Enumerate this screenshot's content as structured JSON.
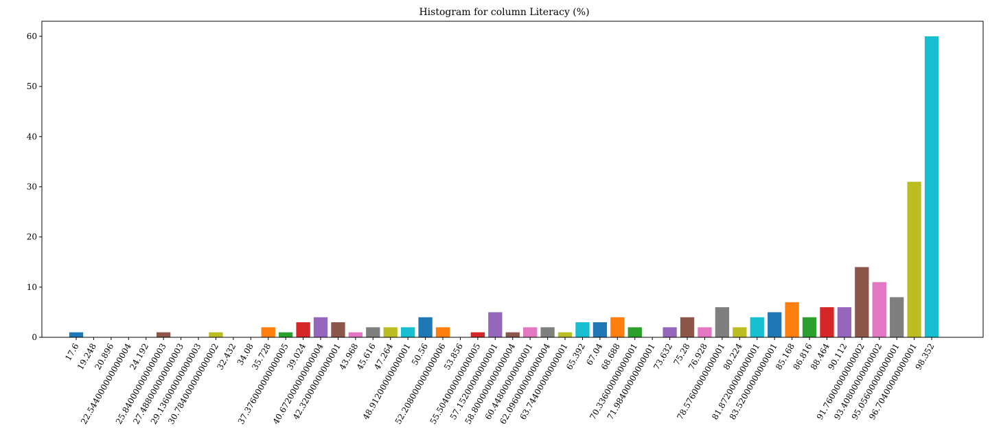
{
  "chart_data": {
    "type": "bar",
    "title": "Histogram for column Literacy (%)",
    "xlabel": "",
    "ylabel": "",
    "ylim": [
      0,
      63
    ],
    "yticks": [
      0,
      10,
      20,
      30,
      40,
      50,
      60
    ],
    "grid": false,
    "legend": "none",
    "palette": [
      "#1f77b4",
      "#ff7f0e",
      "#2ca02c",
      "#d62728",
      "#9467bd",
      "#8c564b",
      "#e377c2",
      "#7f7f7f",
      "#bcbd22",
      "#17becf"
    ],
    "bins": [
      17.6,
      19.248,
      20.896,
      22.544,
      24.192,
      25.84,
      27.488,
      29.136,
      30.784,
      32.432,
      34.08,
      35.728,
      37.376,
      39.024,
      40.672,
      42.32,
      43.968,
      45.616,
      47.264,
      48.912,
      50.56,
      52.208,
      53.856,
      55.504,
      57.152,
      58.8,
      60.448,
      62.096,
      63.744,
      65.392,
      67.04,
      68.688,
      70.336,
      71.984,
      73.632,
      75.28,
      76.928,
      78.576,
      80.224,
      81.872,
      83.52,
      85.168,
      86.816,
      88.464,
      90.112,
      91.76,
      93.408,
      95.056,
      96.704,
      98.352
    ],
    "values": [
      1,
      0,
      0,
      0,
      0,
      1,
      0,
      0,
      1,
      0,
      0,
      2,
      1,
      3,
      4,
      3,
      1,
      2,
      2,
      2,
      4,
      2,
      0,
      1,
      5,
      1,
      2,
      2,
      1,
      3,
      3,
      4,
      2,
      0,
      2,
      4,
      2,
      6,
      2,
      4,
      5,
      7,
      4,
      6,
      6,
      14,
      11,
      8,
      31,
      60
    ],
    "tick_labels": [
      "17.6",
      "19.248",
      "20.896",
      "22.544000000000004",
      "24.192",
      "25.840000000000003",
      "27.488000000000003",
      "29.136000000000003",
      "30.784000000000002",
      "32.432",
      "34.08",
      "35.728",
      "37.376000000000005",
      "39.024",
      "40.672000000000004",
      "42.32000000000001",
      "43.968",
      "45.616",
      "47.264",
      "48.91200000000001",
      "50.56",
      "52.208000000000006",
      "53.856",
      "55.504000000000005",
      "57.15200000000001",
      "58.800000000000004",
      "60.44800000000001",
      "62.096000000000004",
      "63.74400000000001",
      "65.392",
      "67.04",
      "68.688",
      "70.33600000000001",
      "71.98400000000001",
      "73.632",
      "75.28",
      "76.928",
      "78.57600000000001",
      "80.224",
      "81.87200000000001",
      "83.52000000000001",
      "85.168",
      "86.816",
      "88.464",
      "90.112",
      "91.76000000000002",
      "93.40800000000002",
      "95.05600000000001",
      "96.70400000000001",
      "98.352"
    ]
  }
}
